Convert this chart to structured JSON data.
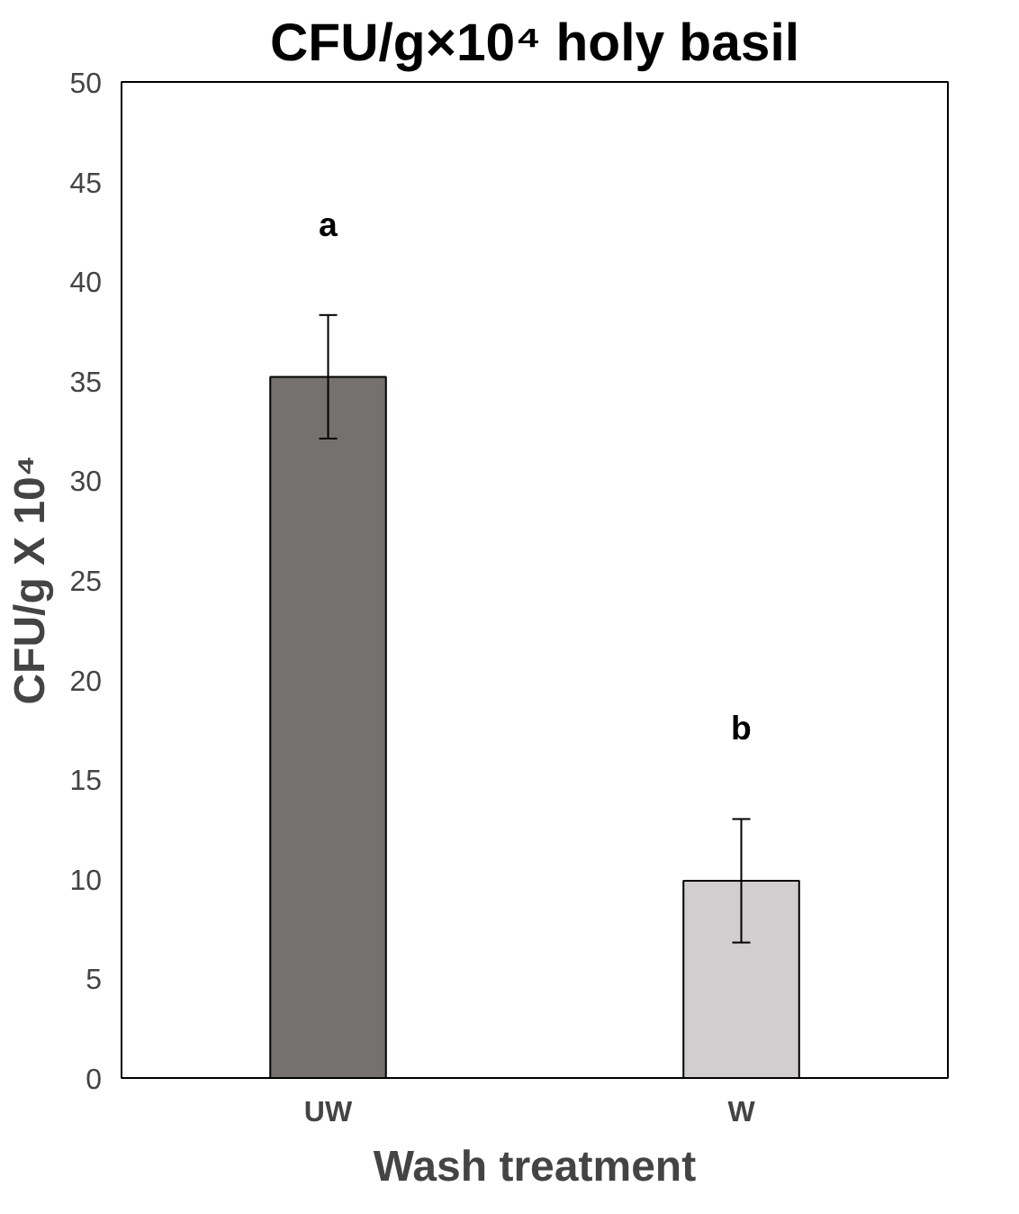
{
  "chart_data": {
    "type": "bar",
    "title": "CFU/g×10⁴ holy basil",
    "xlabel": "Wash treatment",
    "ylabel": "CFU/g X 10⁴",
    "categories": [
      "UW",
      "W"
    ],
    "values": [
      35.2,
      9.9
    ],
    "colors": [
      "#767171",
      "#d0cece"
    ],
    "errors": [
      3.1,
      3.1
    ],
    "ylim": [
      0,
      50
    ],
    "yticks": [
      0,
      5,
      10,
      15,
      20,
      25,
      30,
      35,
      40,
      45,
      50
    ],
    "grid": false,
    "annotations": [
      "a",
      "b"
    ]
  }
}
